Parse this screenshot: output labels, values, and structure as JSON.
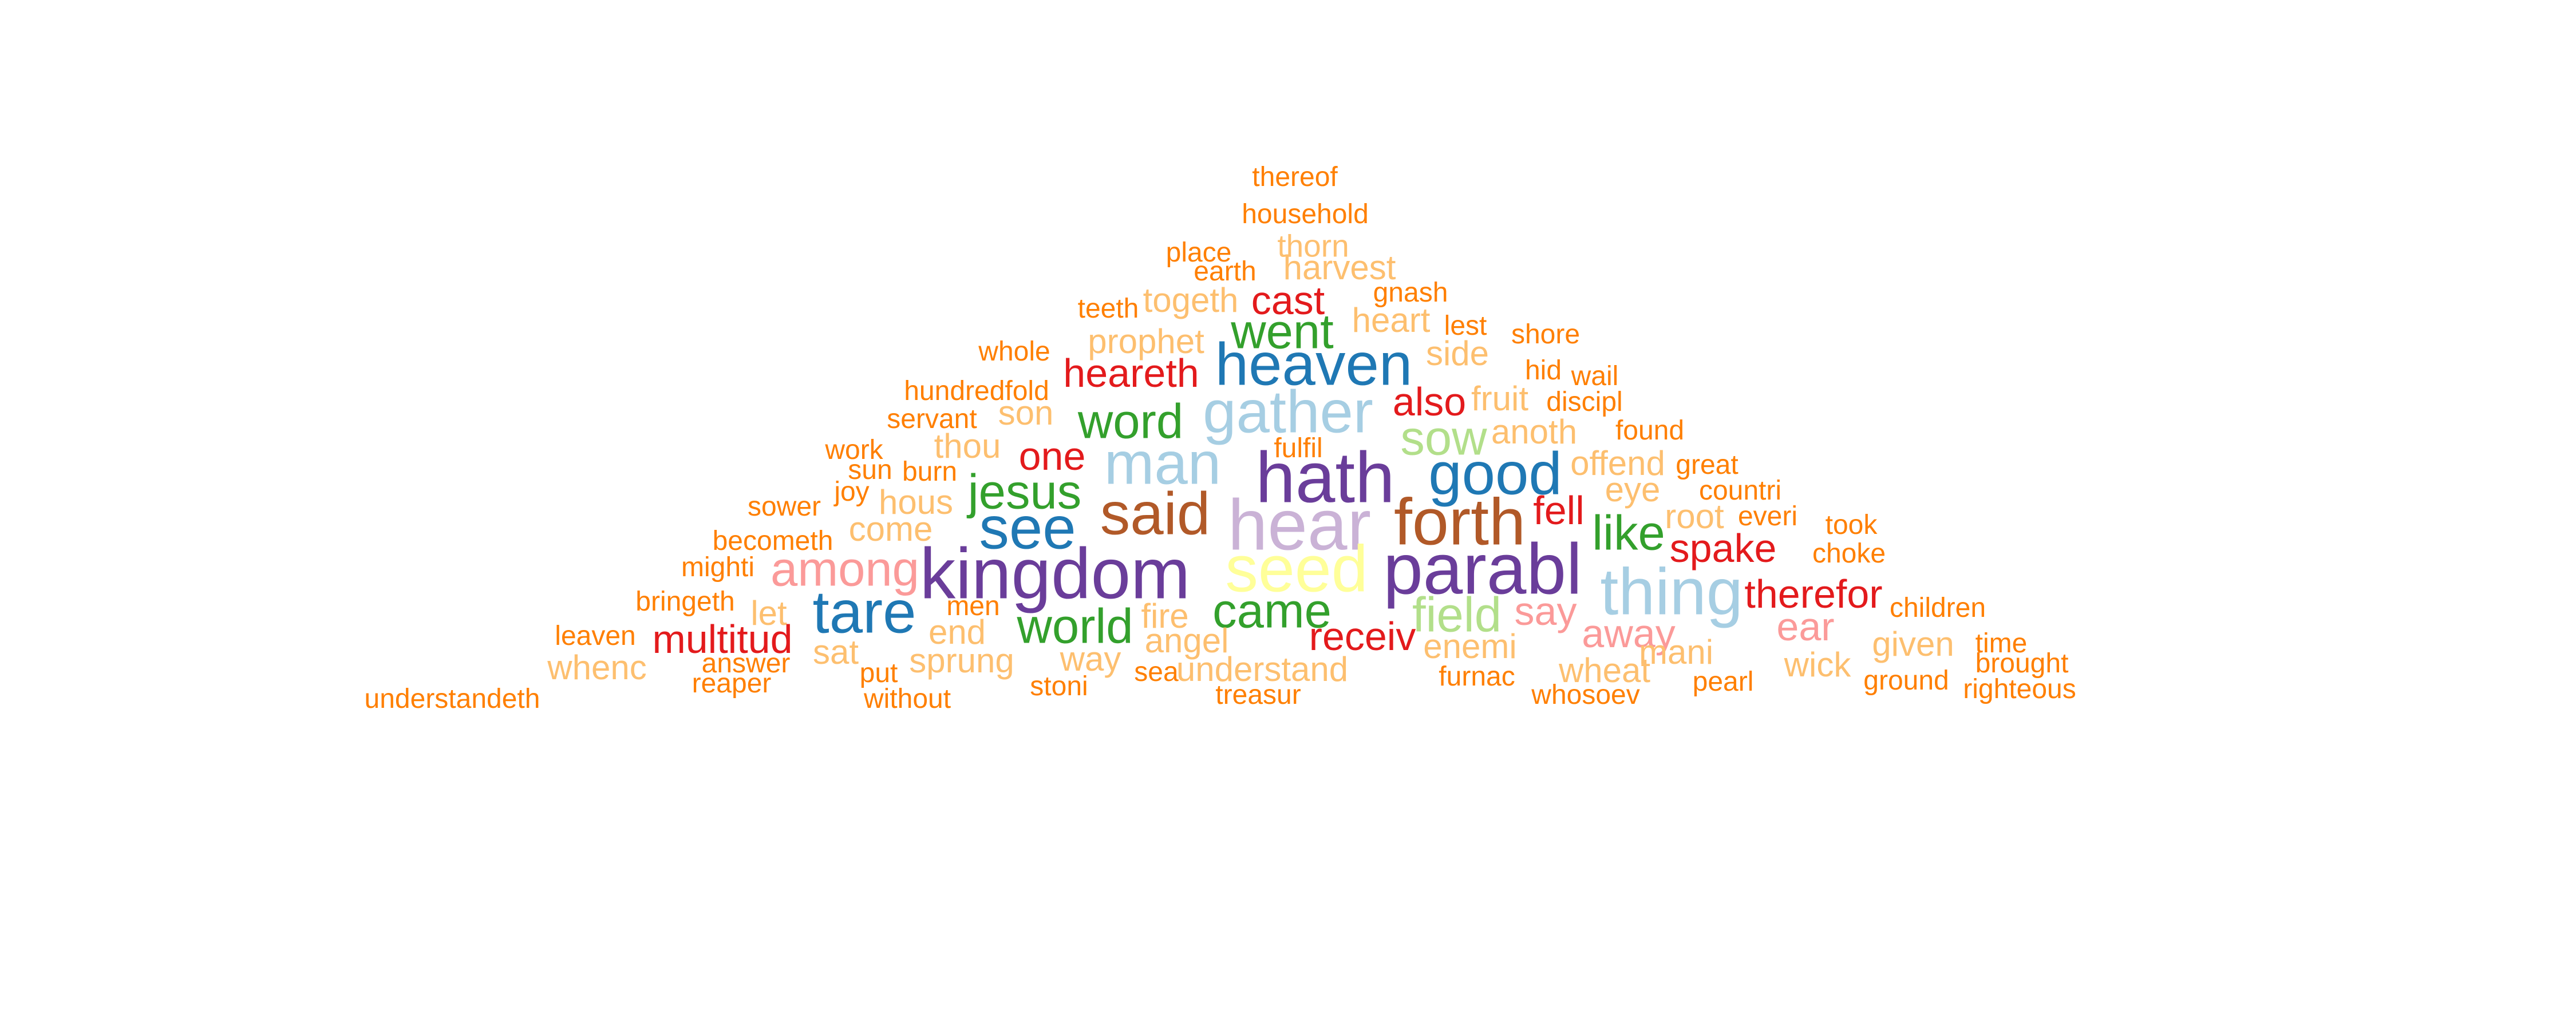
{
  "palette": {
    "orange": "#ff7f00",
    "light-orange": "#fdbf6f",
    "red": "#e31a1c",
    "pink": "#fb9a99",
    "green": "#33a02c",
    "light-green": "#b2df8a",
    "blue": "#1f78b4",
    "light-blue": "#a6cee3",
    "purple": "#6a3d9a",
    "lavender": "#cab2d6",
    "brown": "#b15928",
    "yellow": "#ffff99"
  },
  "words": [
    {
      "text": "thereof",
      "color": "orange"
    },
    {
      "text": "household",
      "color": "orange"
    },
    {
      "text": "thorn",
      "color": "light-orange"
    },
    {
      "text": "place",
      "color": "orange"
    },
    {
      "text": "earth",
      "color": "orange"
    },
    {
      "text": "harvest",
      "color": "light-orange"
    },
    {
      "text": "gnash",
      "color": "orange"
    },
    {
      "text": "togeth",
      "color": "light-orange"
    },
    {
      "text": "cast",
      "color": "red"
    },
    {
      "text": "teeth",
      "color": "orange"
    },
    {
      "text": "heart",
      "color": "light-orange"
    },
    {
      "text": "went",
      "color": "green"
    },
    {
      "text": "lest",
      "color": "orange"
    },
    {
      "text": "shore",
      "color": "orange"
    },
    {
      "text": "prophet",
      "color": "light-orange"
    },
    {
      "text": "whole",
      "color": "orange"
    },
    {
      "text": "side",
      "color": "light-orange"
    },
    {
      "text": "heaven",
      "color": "blue"
    },
    {
      "text": "heareth",
      "color": "red"
    },
    {
      "text": "hid",
      "color": "orange"
    },
    {
      "text": "wail",
      "color": "orange"
    },
    {
      "text": "hundredfold",
      "color": "orange"
    },
    {
      "text": "gather",
      "color": "light-blue"
    },
    {
      "text": "also",
      "color": "red"
    },
    {
      "text": "fruit",
      "color": "light-orange"
    },
    {
      "text": "discipl",
      "color": "orange"
    },
    {
      "text": "son",
      "color": "light-orange"
    },
    {
      "text": "servant",
      "color": "orange"
    },
    {
      "text": "word",
      "color": "green"
    },
    {
      "text": "sow",
      "color": "light-green"
    },
    {
      "text": "anoth",
      "color": "light-orange"
    },
    {
      "text": "found",
      "color": "orange"
    },
    {
      "text": "work",
      "color": "orange"
    },
    {
      "text": "thou",
      "color": "light-orange"
    },
    {
      "text": "one",
      "color": "red"
    },
    {
      "text": "fulfil",
      "color": "orange"
    },
    {
      "text": "man",
      "color": "light-blue"
    },
    {
      "text": "hath",
      "color": "purple"
    },
    {
      "text": "good",
      "color": "blue"
    },
    {
      "text": "offend",
      "color": "light-orange"
    },
    {
      "text": "great",
      "color": "orange"
    },
    {
      "text": "sun",
      "color": "orange"
    },
    {
      "text": "burn",
      "color": "orange"
    },
    {
      "text": "joy",
      "color": "orange"
    },
    {
      "text": "jesus",
      "color": "green"
    },
    {
      "text": "eye",
      "color": "light-orange"
    },
    {
      "text": "countri",
      "color": "orange"
    },
    {
      "text": "sower",
      "color": "orange"
    },
    {
      "text": "hous",
      "color": "light-orange"
    },
    {
      "text": "said",
      "color": "brown"
    },
    {
      "text": "fell",
      "color": "red"
    },
    {
      "text": "root",
      "color": "light-orange"
    },
    {
      "text": "everi",
      "color": "orange"
    },
    {
      "text": "took",
      "color": "orange"
    },
    {
      "text": "come",
      "color": "light-orange"
    },
    {
      "text": "see",
      "color": "blue"
    },
    {
      "text": "hear",
      "color": "lavender"
    },
    {
      "text": "forth",
      "color": "brown"
    },
    {
      "text": "like",
      "color": "green"
    },
    {
      "text": "becometh",
      "color": "orange"
    },
    {
      "text": "spake",
      "color": "red"
    },
    {
      "text": "choke",
      "color": "orange"
    },
    {
      "text": "mighti",
      "color": "orange"
    },
    {
      "text": "among",
      "color": "pink"
    },
    {
      "text": "kingdom",
      "color": "purple"
    },
    {
      "text": "seed",
      "color": "yellow"
    },
    {
      "text": "parabl",
      "color": "purple"
    },
    {
      "text": "thing",
      "color": "light-blue"
    },
    {
      "text": "therefor",
      "color": "red"
    },
    {
      "text": "bringeth",
      "color": "orange"
    },
    {
      "text": "men",
      "color": "orange"
    },
    {
      "text": "children",
      "color": "orange"
    },
    {
      "text": "let",
      "color": "light-orange"
    },
    {
      "text": "tare",
      "color": "blue"
    },
    {
      "text": "came",
      "color": "green"
    },
    {
      "text": "field",
      "color": "light-green"
    },
    {
      "text": "say",
      "color": "pink"
    },
    {
      "text": "fire",
      "color": "light-orange"
    },
    {
      "text": "world",
      "color": "green"
    },
    {
      "text": "ear",
      "color": "pink"
    },
    {
      "text": "leaven",
      "color": "orange"
    },
    {
      "text": "multitud",
      "color": "red"
    },
    {
      "text": "end",
      "color": "light-orange"
    },
    {
      "text": "receiv",
      "color": "red"
    },
    {
      "text": "away",
      "color": "pink"
    },
    {
      "text": "time",
      "color": "orange"
    },
    {
      "text": "angel",
      "color": "light-orange"
    },
    {
      "text": "enemi",
      "color": "light-orange"
    },
    {
      "text": "given",
      "color": "light-orange"
    },
    {
      "text": "sat",
      "color": "light-orange"
    },
    {
      "text": "mani",
      "color": "light-orange"
    },
    {
      "text": "brought",
      "color": "orange"
    },
    {
      "text": "answer",
      "color": "orange"
    },
    {
      "text": "whenc",
      "color": "light-orange"
    },
    {
      "text": "sprung",
      "color": "light-orange"
    },
    {
      "text": "way",
      "color": "light-orange"
    },
    {
      "text": "understand",
      "color": "light-orange"
    },
    {
      "text": "wick",
      "color": "light-orange"
    },
    {
      "text": "put",
      "color": "orange"
    },
    {
      "text": "sea",
      "color": "orange"
    },
    {
      "text": "wheat",
      "color": "light-orange"
    },
    {
      "text": "furnac",
      "color": "orange"
    },
    {
      "text": "pearl",
      "color": "orange"
    },
    {
      "text": "ground",
      "color": "orange"
    },
    {
      "text": "reaper",
      "color": "orange"
    },
    {
      "text": "stoni",
      "color": "orange"
    },
    {
      "text": "righteous",
      "color": "orange"
    },
    {
      "text": "whosoev",
      "color": "orange"
    },
    {
      "text": "treasur",
      "color": "orange"
    },
    {
      "text": "without",
      "color": "orange"
    },
    {
      "text": "understandeth",
      "color": "orange"
    }
  ]
}
